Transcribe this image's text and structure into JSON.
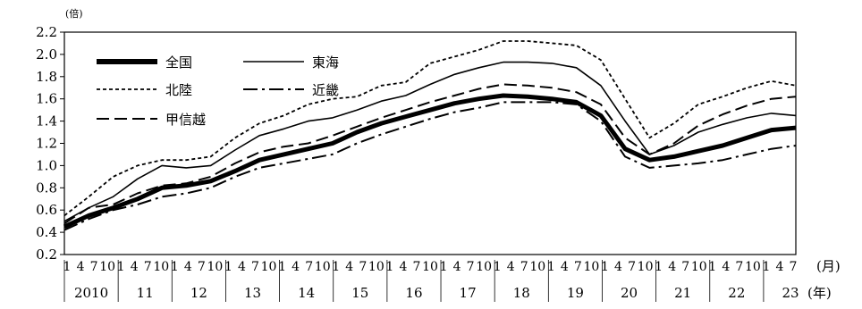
{
  "chart_data": {
    "type": "line",
    "ylabel_unit": "(倍)",
    "xlabel_month_unit": "(月)",
    "xlabel_year_unit": "(年)",
    "ylim": [
      0.2,
      2.2
    ],
    "yticks": [
      "0.2",
      "0.4",
      "0.6",
      "0.8",
      "1.0",
      "1.2",
      "1.4",
      "1.6",
      "1.8",
      "2.0",
      "2.2"
    ],
    "month_tick_labels": [
      "1",
      "4",
      "7",
      "10"
    ],
    "years": [
      "2010",
      "11",
      "12",
      "13",
      "14",
      "15",
      "16",
      "17",
      "18",
      "19",
      "20",
      "21",
      "22",
      "23"
    ],
    "legend": {
      "zenkoku": "全国",
      "tokai": "東海",
      "hokuriku": "北陸",
      "kinki": "近畿",
      "koshinetsu": "甲信越"
    },
    "series": [
      {
        "key": "hokuriku",
        "name": "北陸",
        "values": [
          0.55,
          0.72,
          0.9,
          1.0,
          1.05,
          1.05,
          1.08,
          1.25,
          1.38,
          1.45,
          1.55,
          1.6,
          1.62,
          1.72,
          1.75,
          1.92,
          1.98,
          2.04,
          2.12,
          2.12,
          2.1,
          2.08,
          1.95,
          1.6,
          1.25,
          1.38,
          1.55,
          1.62,
          1.7,
          1.76,
          1.72
        ]
      },
      {
        "key": "tokai",
        "name": "東海",
        "values": [
          0.5,
          0.62,
          0.72,
          0.88,
          1.0,
          0.98,
          1.0,
          1.14,
          1.27,
          1.33,
          1.4,
          1.43,
          1.5,
          1.58,
          1.63,
          1.73,
          1.82,
          1.88,
          1.93,
          1.93,
          1.92,
          1.88,
          1.72,
          1.4,
          1.1,
          1.18,
          1.3,
          1.37,
          1.43,
          1.47,
          1.45
        ]
      },
      {
        "key": "koshinetsu",
        "name": "甲信越",
        "values": [
          0.48,
          0.62,
          0.65,
          0.75,
          0.82,
          0.84,
          0.9,
          1.02,
          1.12,
          1.17,
          1.2,
          1.27,
          1.35,
          1.43,
          1.5,
          1.57,
          1.63,
          1.69,
          1.73,
          1.72,
          1.7,
          1.66,
          1.55,
          1.25,
          1.1,
          1.2,
          1.36,
          1.46,
          1.54,
          1.6,
          1.62
        ]
      },
      {
        "key": "zenkoku",
        "name": "全国",
        "values": [
          0.45,
          0.55,
          0.62,
          0.7,
          0.8,
          0.82,
          0.86,
          0.95,
          1.05,
          1.1,
          1.15,
          1.2,
          1.3,
          1.38,
          1.44,
          1.5,
          1.56,
          1.6,
          1.63,
          1.62,
          1.6,
          1.57,
          1.45,
          1.15,
          1.05,
          1.08,
          1.13,
          1.18,
          1.25,
          1.32,
          1.34
        ]
      },
      {
        "key": "kinki",
        "name": "近畿",
        "values": [
          0.42,
          0.52,
          0.6,
          0.65,
          0.72,
          0.75,
          0.8,
          0.9,
          0.98,
          1.02,
          1.06,
          1.1,
          1.2,
          1.28,
          1.35,
          1.42,
          1.48,
          1.52,
          1.57,
          1.57,
          1.57,
          1.55,
          1.4,
          1.08,
          0.98,
          1.0,
          1.02,
          1.05,
          1.1,
          1.15,
          1.18
        ]
      }
    ]
  }
}
